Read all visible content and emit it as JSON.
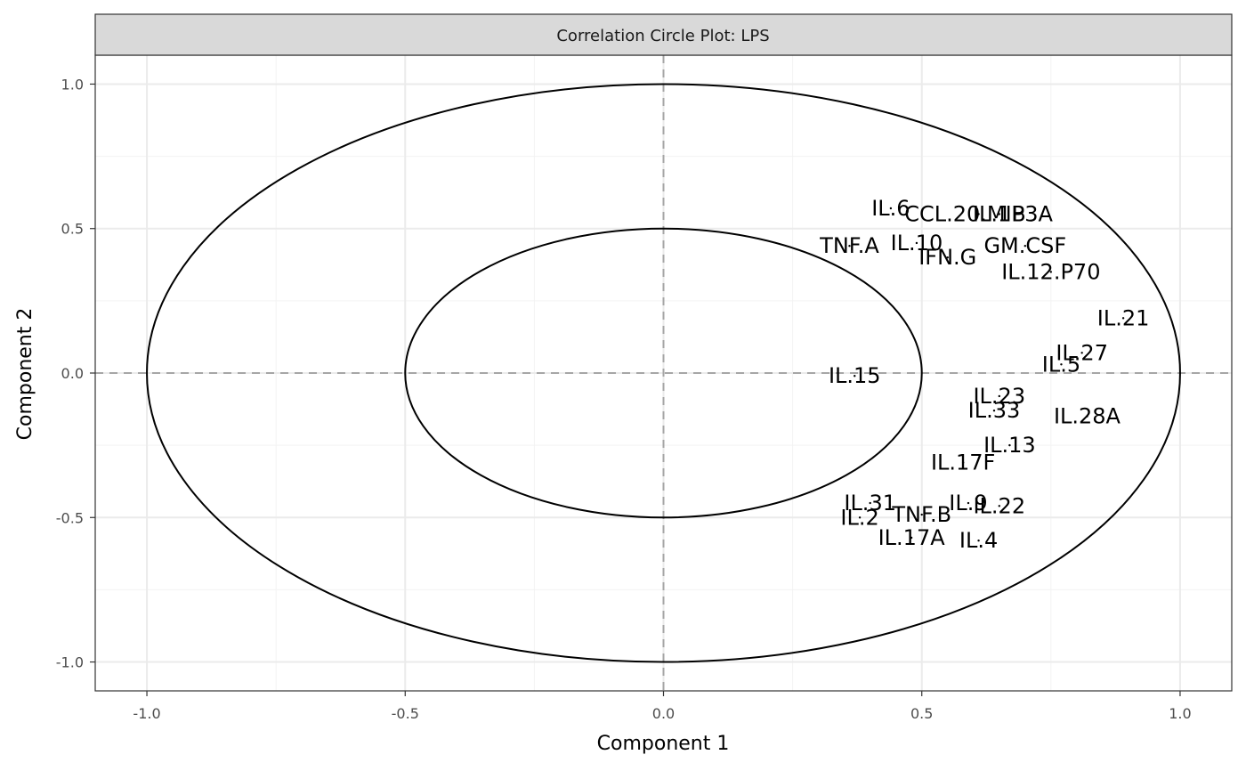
{
  "chart_data": {
    "type": "scatter",
    "title": "Correlation Circle Plot: LPS",
    "xlabel": "Component  1",
    "ylabel": "Component  2",
    "xlim": [
      -1.1,
      1.1
    ],
    "ylim": [
      -1.1,
      1.1
    ],
    "x_ticks": [
      -1.0,
      -0.5,
      0.0,
      0.5,
      1.0
    ],
    "y_ticks": [
      -1.0,
      -0.5,
      0.0,
      0.5,
      1.0
    ],
    "x_tick_labels": [
      "-1.0",
      "-0.5",
      "0.0",
      "0.5",
      "1.0"
    ],
    "y_tick_labels": [
      "-1.0",
      "-0.5",
      "0.0",
      "0.5",
      "1.0"
    ],
    "circles": [
      {
        "radius": 1.0
      },
      {
        "radius": 0.5
      }
    ],
    "reference_lines": {
      "x": 0,
      "y": 0,
      "style": "dashed"
    },
    "grid": true,
    "points": [
      {
        "label": "IL.6",
        "x": 0.44,
        "y": 0.57
      },
      {
        "label": "CCL.20.MIP3A",
        "x": 0.61,
        "y": 0.55
      },
      {
        "label": "IL.1B",
        "x": 0.65,
        "y": 0.55
      },
      {
        "label": "TNF.A",
        "x": 0.36,
        "y": 0.44
      },
      {
        "label": "IL.10",
        "x": 0.49,
        "y": 0.45
      },
      {
        "label": "GM.CSF",
        "x": 0.7,
        "y": 0.44
      },
      {
        "label": "IFN.G",
        "x": 0.55,
        "y": 0.4
      },
      {
        "label": "IL.12.P70",
        "x": 0.75,
        "y": 0.35
      },
      {
        "label": "IL.21",
        "x": 0.89,
        "y": 0.19
      },
      {
        "label": "IL.27",
        "x": 0.81,
        "y": 0.07
      },
      {
        "label": "IL.5",
        "x": 0.77,
        "y": 0.03
      },
      {
        "label": "IL.15",
        "x": 0.37,
        "y": -0.01
      },
      {
        "label": "IL.23",
        "x": 0.65,
        "y": -0.08
      },
      {
        "label": "IL.33",
        "x": 0.64,
        "y": -0.13
      },
      {
        "label": "IL.28A",
        "x": 0.82,
        "y": -0.15
      },
      {
        "label": "IL.13",
        "x": 0.67,
        "y": -0.25
      },
      {
        "label": "IL.17F",
        "x": 0.58,
        "y": -0.31
      },
      {
        "label": "IL.31",
        "x": 0.4,
        "y": -0.45
      },
      {
        "label": "IL.9",
        "x": 0.59,
        "y": -0.45
      },
      {
        "label": "IL.22",
        "x": 0.65,
        "y": -0.46
      },
      {
        "label": "TNF.B",
        "x": 0.5,
        "y": -0.49
      },
      {
        "label": "IL.2",
        "x": 0.38,
        "y": -0.5
      },
      {
        "label": "IL.17A",
        "x": 0.48,
        "y": -0.57
      },
      {
        "label": "IL.4",
        "x": 0.61,
        "y": -0.58
      }
    ]
  },
  "colors": {
    "strip_fill": "#d9d9d9",
    "panel_border": "#333333",
    "grid_major": "#ebebeb",
    "grid_minor": "#f3f3f3",
    "reference_line": "#a6a6a6",
    "circle": "#000000",
    "text": "#000000"
  }
}
